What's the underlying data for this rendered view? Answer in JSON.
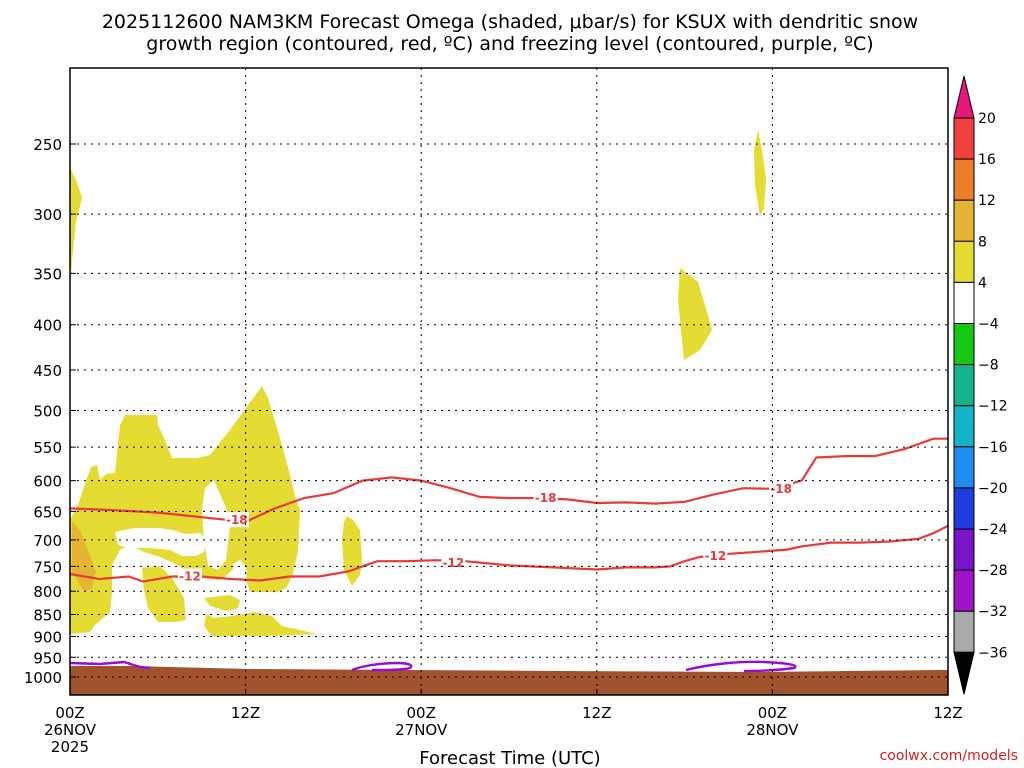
{
  "chart_data": {
    "type": "heatmap",
    "title_line1": "2025112600 NAM3KM Forecast Omega (shaded, μbar/s) for KSUX with dendritic snow",
    "title_line2": "growth region (contoured, red, ºC) and freezing level (contoured, purple, ºC)",
    "xlabel": "Forecast Time (UTC)",
    "credit": "coolwx.com/models",
    "x_range_hours": [
      0,
      60
    ],
    "y_axis": "pressure (hPa), log scale",
    "y_range": [
      1050,
      200
    ],
    "x_ticks": [
      {
        "hour": 0,
        "l1": "00Z",
        "l2": "26NOV",
        "l3": "2025"
      },
      {
        "hour": 12,
        "l1": "12Z",
        "l2": "",
        "l3": ""
      },
      {
        "hour": 24,
        "l1": "00Z",
        "l2": "27NOV",
        "l3": ""
      },
      {
        "hour": 36,
        "l1": "12Z",
        "l2": "",
        "l3": ""
      },
      {
        "hour": 48,
        "l1": "00Z",
        "l2": "28NOV",
        "l3": ""
      },
      {
        "hour": 60,
        "l1": "12Z",
        "l2": "",
        "l3": ""
      }
    ],
    "y_ticks": [
      250,
      300,
      350,
      400,
      450,
      500,
      550,
      600,
      650,
      700,
      750,
      800,
      850,
      900,
      950,
      1000
    ],
    "colorbar": {
      "ticks": [
        "20",
        "16",
        "12",
        "8",
        "4",
        "−4",
        "−8",
        "−12",
        "−16",
        "−20",
        "−24",
        "−28",
        "−32",
        "−36"
      ],
      "colors": [
        "#e8177a",
        "#f04040",
        "#ec802a",
        "#e4b432",
        "#e4dc32",
        "#ffffff",
        "#14c814",
        "#14b48c",
        "#14b4c8",
        "#1e8cf0",
        "#1e3cdc",
        "#7814c8",
        "#a014c8",
        "#aaaaaa",
        "#000000"
      ]
    },
    "shading_colors": {
      "omega_4_to_8": "#e4dc32",
      "omega_8_to_12": "#e4b432",
      "ground": "#a0522d"
    },
    "contours": [
      {
        "label": "-18",
        "color": "#e83a3a",
        "label_hours": [
          [
            11.4,
            665
          ],
          [
            32.5,
            628
          ],
          [
            48.6,
            613
          ]
        ],
        "points": [
          [
            0,
            645
          ],
          [
            3,
            648
          ],
          [
            6,
            652
          ],
          [
            9,
            660
          ],
          [
            12,
            668
          ],
          [
            14,
            645
          ],
          [
            16,
            628
          ],
          [
            18,
            620
          ],
          [
            20,
            600
          ],
          [
            22,
            595
          ],
          [
            24,
            600
          ],
          [
            26,
            612
          ],
          [
            28,
            626
          ],
          [
            30,
            628
          ],
          [
            32,
            628
          ],
          [
            34,
            630
          ],
          [
            36,
            636
          ],
          [
            38,
            635
          ],
          [
            40,
            637
          ],
          [
            42,
            634
          ],
          [
            44,
            622
          ],
          [
            46,
            612
          ],
          [
            48,
            613
          ],
          [
            50,
            600
          ],
          [
            51,
            565
          ],
          [
            53,
            563
          ],
          [
            55,
            563
          ],
          [
            57,
            553
          ],
          [
            59,
            538
          ],
          [
            60,
            538
          ]
        ]
      },
      {
        "label": "-12",
        "color": "#e83a3a",
        "label_hours": [
          [
            8.2,
            770
          ],
          [
            26.2,
            743
          ],
          [
            44.1,
            730
          ]
        ],
        "points": [
          [
            0,
            765
          ],
          [
            2,
            775
          ],
          [
            4,
            770
          ],
          [
            5,
            780
          ],
          [
            7,
            770
          ],
          [
            9,
            770
          ],
          [
            11,
            775
          ],
          [
            13,
            778
          ],
          [
            15,
            770
          ],
          [
            17,
            770
          ],
          [
            19,
            760
          ],
          [
            21,
            740
          ],
          [
            23,
            740
          ],
          [
            25,
            738
          ],
          [
            27,
            740
          ],
          [
            30,
            748
          ],
          [
            33,
            752
          ],
          [
            36,
            756
          ],
          [
            38,
            752
          ],
          [
            40,
            752
          ],
          [
            41,
            750
          ],
          [
            42,
            740
          ],
          [
            43,
            732
          ],
          [
            45,
            726
          ],
          [
            47,
            722
          ],
          [
            49,
            718
          ],
          [
            50,
            712
          ],
          [
            52,
            705
          ],
          [
            54,
            705
          ],
          [
            56,
            703
          ],
          [
            58,
            698
          ],
          [
            59,
            688
          ],
          [
            60,
            675
          ]
        ]
      }
    ],
    "freezing_level": {
      "color": "#9a0ad0"
    }
  }
}
